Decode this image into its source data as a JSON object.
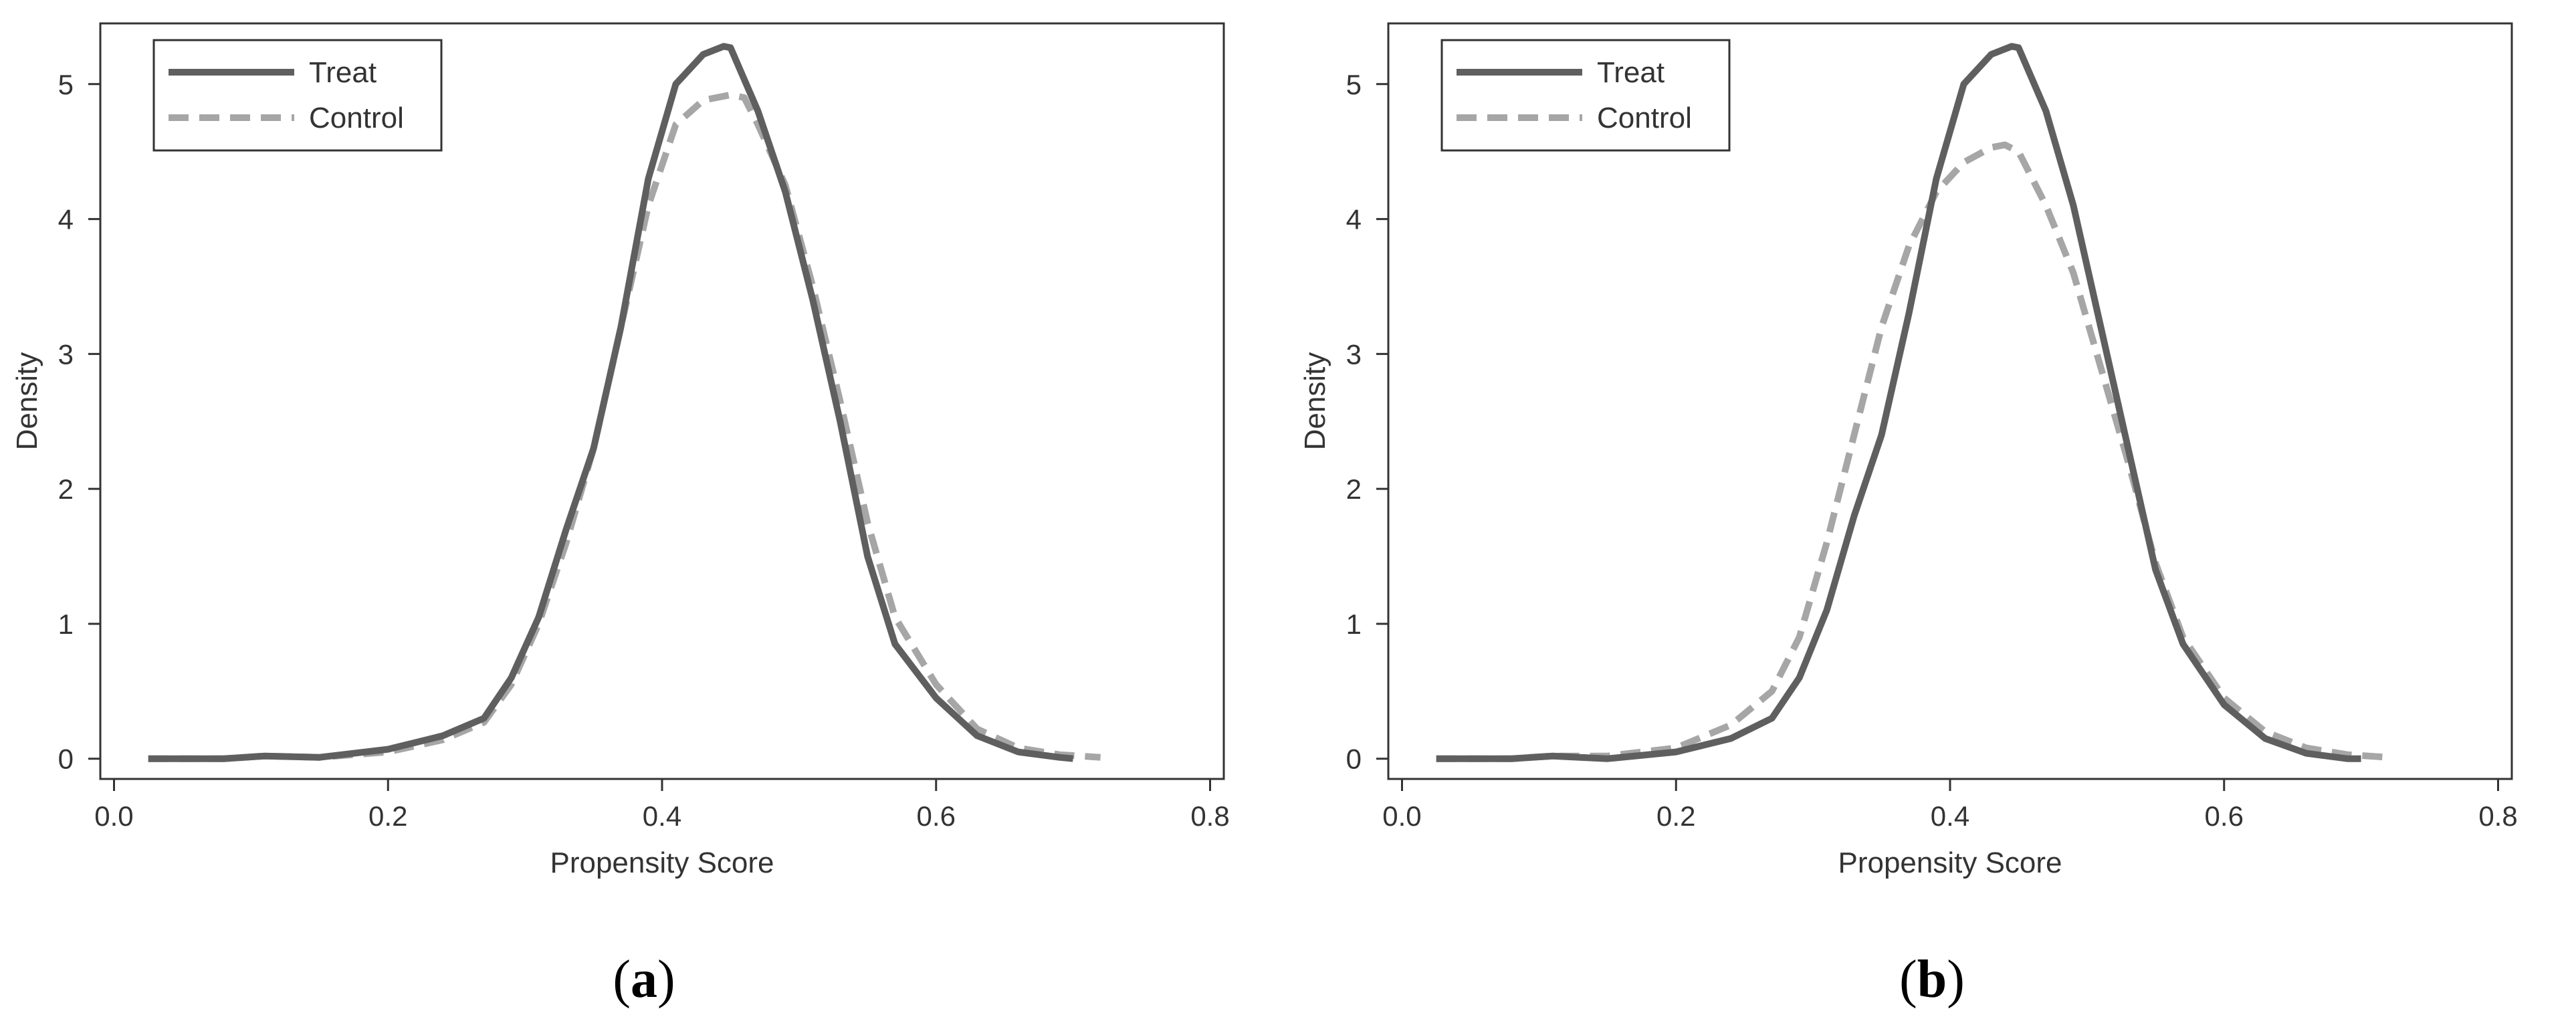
{
  "colors": {
    "treat": "#5f5f5f",
    "control": "#a6a6a6",
    "frame": "#333333"
  },
  "panels": [
    {
      "caption": "a"
    },
    {
      "caption": "b"
    }
  ],
  "chart_data": [
    {
      "type": "line",
      "title": "",
      "xlabel": "Propensity Score",
      "ylabel": "Density",
      "xlim": [
        -0.01,
        0.81
      ],
      "ylim": [
        -0.15,
        5.45
      ],
      "xticks": [
        0,
        0.2,
        0.4,
        0.6,
        0.8
      ],
      "xtick_labels": [
        "0.0",
        "0.2",
        "0.4",
        "0.6",
        "0.8"
      ],
      "yticks": [
        0,
        1,
        2,
        3,
        4,
        5
      ],
      "ytick_labels": [
        "0",
        "1",
        "2",
        "3",
        "4",
        "5"
      ],
      "grid": false,
      "legend": "top-left",
      "series": [
        {
          "name": "Treat",
          "style": "solid",
          "x": [
            0.025,
            0.08,
            0.11,
            0.15,
            0.2,
            0.24,
            0.27,
            0.29,
            0.31,
            0.33,
            0.35,
            0.37,
            0.39,
            0.41,
            0.43,
            0.445,
            0.45,
            0.47,
            0.49,
            0.51,
            0.53,
            0.55,
            0.57,
            0.6,
            0.63,
            0.66,
            0.69,
            0.7
          ],
          "y": [
            0.0,
            0.0,
            0.02,
            0.01,
            0.07,
            0.17,
            0.3,
            0.6,
            1.05,
            1.7,
            2.3,
            3.2,
            4.3,
            5.0,
            5.22,
            5.28,
            5.27,
            4.8,
            4.2,
            3.4,
            2.5,
            1.5,
            0.85,
            0.45,
            0.17,
            0.05,
            0.01,
            0.0
          ]
        },
        {
          "name": "Control",
          "style": "dashed",
          "x": [
            0.025,
            0.08,
            0.11,
            0.15,
            0.2,
            0.24,
            0.27,
            0.29,
            0.31,
            0.33,
            0.35,
            0.37,
            0.39,
            0.41,
            0.43,
            0.45,
            0.46,
            0.47,
            0.49,
            0.51,
            0.53,
            0.55,
            0.57,
            0.6,
            0.63,
            0.66,
            0.69,
            0.72
          ],
          "y": [
            0.0,
            0.0,
            0.02,
            0.01,
            0.05,
            0.14,
            0.27,
            0.55,
            1.0,
            1.6,
            2.3,
            3.2,
            4.1,
            4.7,
            4.88,
            4.92,
            4.9,
            4.7,
            4.25,
            3.5,
            2.65,
            1.75,
            1.05,
            0.55,
            0.22,
            0.08,
            0.03,
            0.01
          ]
        }
      ]
    },
    {
      "type": "line",
      "title": "",
      "xlabel": "Propensity Score",
      "ylabel": "Density",
      "xlim": [
        -0.01,
        0.81
      ],
      "ylim": [
        -0.15,
        5.45
      ],
      "xticks": [
        0,
        0.2,
        0.4,
        0.6,
        0.8
      ],
      "xtick_labels": [
        "0.0",
        "0.2",
        "0.4",
        "0.6",
        "0.8"
      ],
      "yticks": [
        0,
        1,
        2,
        3,
        4,
        5
      ],
      "ytick_labels": [
        "0",
        "1",
        "2",
        "3",
        "4",
        "5"
      ],
      "grid": false,
      "legend": "top-left",
      "series": [
        {
          "name": "Treat",
          "style": "solid",
          "x": [
            0.025,
            0.08,
            0.11,
            0.15,
            0.2,
            0.24,
            0.27,
            0.29,
            0.31,
            0.33,
            0.35,
            0.37,
            0.39,
            0.41,
            0.43,
            0.445,
            0.45,
            0.47,
            0.49,
            0.51,
            0.53,
            0.55,
            0.57,
            0.6,
            0.63,
            0.66,
            0.69,
            0.7
          ],
          "y": [
            0.0,
            0.0,
            0.02,
            0.0,
            0.05,
            0.15,
            0.3,
            0.6,
            1.1,
            1.8,
            2.4,
            3.3,
            4.3,
            5.0,
            5.22,
            5.28,
            5.27,
            4.8,
            4.1,
            3.2,
            2.3,
            1.4,
            0.85,
            0.4,
            0.15,
            0.04,
            0.0,
            0.0
          ]
        },
        {
          "name": "Control",
          "style": "dashed",
          "x": [
            0.025,
            0.08,
            0.11,
            0.15,
            0.2,
            0.24,
            0.27,
            0.29,
            0.31,
            0.33,
            0.35,
            0.37,
            0.39,
            0.41,
            0.43,
            0.44,
            0.45,
            0.47,
            0.49,
            0.51,
            0.53,
            0.55,
            0.57,
            0.6,
            0.63,
            0.66,
            0.69,
            0.72
          ],
          "y": [
            0.0,
            0.0,
            0.02,
            0.02,
            0.08,
            0.25,
            0.5,
            0.9,
            1.6,
            2.4,
            3.2,
            3.8,
            4.2,
            4.42,
            4.53,
            4.55,
            4.5,
            4.1,
            3.6,
            2.9,
            2.2,
            1.45,
            0.9,
            0.45,
            0.2,
            0.08,
            0.03,
            0.01
          ]
        }
      ]
    }
  ]
}
